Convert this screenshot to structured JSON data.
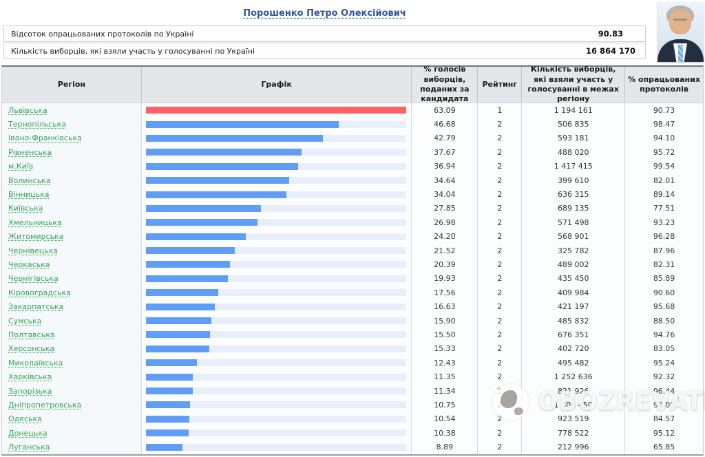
{
  "page": {
    "candidate_name": "Порошенко Петро Олексійович",
    "summary": [
      {
        "label": "Відсоток опрацьованих протоколів по Україні",
        "value": "90.83"
      },
      {
        "label": "Кількість виборців, які взяли участь у голосуванні по Україні",
        "value": "16 864 170"
      }
    ],
    "watermark_text": "OBOZREVATEL",
    "photo_icon": "candidate-portrait"
  },
  "chart": {
    "type": "bar",
    "bar_color": "#5f9df6",
    "top_bar_color": "#ff6166",
    "track_color": "#e9eefb",
    "scale_max_is_top_value": true
  },
  "table": {
    "columns": [
      "Регіон",
      "Графік",
      "% голосів виборців, поданих за кандидата",
      "Рейтинг",
      "Кількість виборців, які взяли участь у голосуванні в межах регіону",
      "% опрацьованих протоколів"
    ],
    "rows": [
      {
        "region": "Львівська",
        "percent": "63.09",
        "rating": "1",
        "voters": "1 194 161",
        "protocols": "90.73",
        "top": true
      },
      {
        "region": "Тернопільська",
        "percent": "46.68",
        "rating": "2",
        "voters": "506 835",
        "protocols": "98.47"
      },
      {
        "region": "Івано-Франківська",
        "percent": "42.79",
        "rating": "2",
        "voters": "593 181",
        "protocols": "94.10"
      },
      {
        "region": "Рівненська",
        "percent": "37.67",
        "rating": "2",
        "voters": "488 020",
        "protocols": "95.72"
      },
      {
        "region": "м.Київ",
        "percent": "36.94",
        "rating": "2",
        "voters": "1 417 415",
        "protocols": "99.54"
      },
      {
        "region": "Волинська",
        "percent": "34.64",
        "rating": "2",
        "voters": "399 610",
        "protocols": "82.01"
      },
      {
        "region": "Вінницька",
        "percent": "34.04",
        "rating": "2",
        "voters": "636 315",
        "protocols": "89.14"
      },
      {
        "region": "Київська",
        "percent": "27.85",
        "rating": "2",
        "voters": "689 135",
        "protocols": "77.51"
      },
      {
        "region": "Хмельницька",
        "percent": "26.98",
        "rating": "2",
        "voters": "571 498",
        "protocols": "93.23"
      },
      {
        "region": "Житомирська",
        "percent": "24.20",
        "rating": "2",
        "voters": "568 901",
        "protocols": "96.28"
      },
      {
        "region": "Чернівецька",
        "percent": "21.52",
        "rating": "2",
        "voters": "325 782",
        "protocols": "87.96"
      },
      {
        "region": "Черкаська",
        "percent": "20.39",
        "rating": "2",
        "voters": "489 002",
        "protocols": "82.31"
      },
      {
        "region": "Чернігівська",
        "percent": "19.93",
        "rating": "2",
        "voters": "435 450",
        "protocols": "85.89"
      },
      {
        "region": "Кіровоградська",
        "percent": "17.56",
        "rating": "2",
        "voters": "409 984",
        "protocols": "90.60"
      },
      {
        "region": "Закарпатська",
        "percent": "16.63",
        "rating": "2",
        "voters": "421 197",
        "protocols": "95.68"
      },
      {
        "region": "Сумська",
        "percent": "15.90",
        "rating": "2",
        "voters": "485 832",
        "protocols": "88.50"
      },
      {
        "region": "Полтавська",
        "percent": "15.50",
        "rating": "2",
        "voters": "676 351",
        "protocols": "94.76"
      },
      {
        "region": "Херсонська",
        "percent": "15.33",
        "rating": "2",
        "voters": "402 720",
        "protocols": "83.05"
      },
      {
        "region": "Миколаївська",
        "percent": "12.43",
        "rating": "2",
        "voters": "495 482",
        "protocols": "95.24"
      },
      {
        "region": "Харківська",
        "percent": "11.35",
        "rating": "2",
        "voters": "1 252 636",
        "protocols": "92.32"
      },
      {
        "region": "Запорізька",
        "percent": "11.34",
        "rating": "2",
        "voters": "821 926",
        "protocols": "96.44"
      },
      {
        "region": "Дніпропетровська",
        "percent": "10.75",
        "rating": "2",
        "voters": "1 608 450",
        "protocols": "98.08"
      },
      {
        "region": "Одеська",
        "percent": "10.54",
        "rating": "2",
        "voters": "923 519",
        "protocols": "84.57"
      },
      {
        "region": "Донецька",
        "percent": "10.38",
        "rating": "2",
        "voters": "778 522",
        "protocols": "95.12"
      },
      {
        "region": "Луганська",
        "percent": "8.89",
        "rating": "2",
        "voters": "212 996",
        "protocols": "65.85"
      }
    ]
  }
}
